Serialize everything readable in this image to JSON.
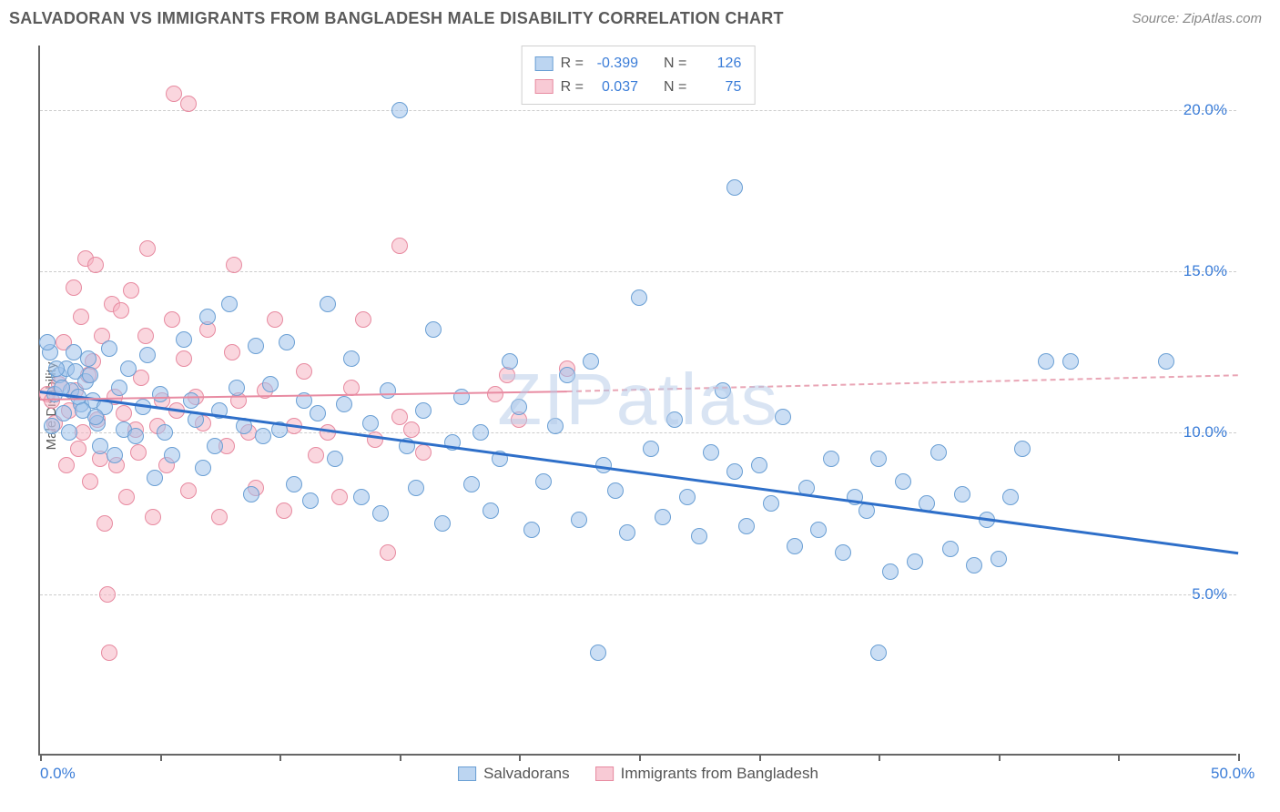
{
  "header": {
    "title": "SALVADORAN VS IMMIGRANTS FROM BANGLADESH MALE DISABILITY CORRELATION CHART",
    "source": "Source: ZipAtlas.com"
  },
  "watermark": "ZIPatlas",
  "ylabel": "Male Disability",
  "chart": {
    "type": "scatter",
    "xlim": [
      0,
      50
    ],
    "ylim": [
      0,
      22
    ],
    "xtick_positions": [
      0,
      5,
      10,
      15,
      20,
      25,
      30,
      35,
      40,
      45,
      50
    ],
    "xtick_labels": {
      "0": "0.0%",
      "50": "50.0%"
    },
    "yticks": [
      5,
      10,
      15,
      20
    ],
    "ytick_labels": [
      "5.0%",
      "10.0%",
      "15.0%",
      "20.0%"
    ],
    "grid_color": "#cccccc",
    "axis_color": "#666666",
    "tick_label_color": "#3b7dd8",
    "background_color": "#ffffff",
    "point_radius": 9,
    "series": {
      "blue": {
        "label": "Salvadorans",
        "fill": "rgba(160,195,235,0.55)",
        "stroke": "#6a9fd4",
        "R": "-0.399",
        "N": "126",
        "trend": {
          "x1": 0,
          "y1": 11.3,
          "x2": 50,
          "y2": 6.3,
          "color": "#2e6fc9",
          "width": 2.5
        },
        "points": [
          [
            0.4,
            12.5
          ],
          [
            0.6,
            11.2
          ],
          [
            0.8,
            11.8
          ],
          [
            1.0,
            10.6
          ],
          [
            1.1,
            12.0
          ],
          [
            1.3,
            11.3
          ],
          [
            1.5,
            11.9
          ],
          [
            1.7,
            10.9
          ],
          [
            1.9,
            11.6
          ],
          [
            2.0,
            12.3
          ],
          [
            2.2,
            11.0
          ],
          [
            2.4,
            10.3
          ],
          [
            2.5,
            9.6
          ],
          [
            2.7,
            10.8
          ],
          [
            2.9,
            12.6
          ],
          [
            3.1,
            9.3
          ],
          [
            3.3,
            11.4
          ],
          [
            3.5,
            10.1
          ],
          [
            3.7,
            12.0
          ],
          [
            4.0,
            9.9
          ],
          [
            4.3,
            10.8
          ],
          [
            4.5,
            12.4
          ],
          [
            4.8,
            8.6
          ],
          [
            5.0,
            11.2
          ],
          [
            5.2,
            10.0
          ],
          [
            5.5,
            9.3
          ],
          [
            6.0,
            12.9
          ],
          [
            6.3,
            11.0
          ],
          [
            6.5,
            10.4
          ],
          [
            6.8,
            8.9
          ],
          [
            7.0,
            13.6
          ],
          [
            7.3,
            9.6
          ],
          [
            7.5,
            10.7
          ],
          [
            7.9,
            14.0
          ],
          [
            8.2,
            11.4
          ],
          [
            8.5,
            10.2
          ],
          [
            8.8,
            8.1
          ],
          [
            9.0,
            12.7
          ],
          [
            9.3,
            9.9
          ],
          [
            9.6,
            11.5
          ],
          [
            10.0,
            10.1
          ],
          [
            10.3,
            12.8
          ],
          [
            10.6,
            8.4
          ],
          [
            11.0,
            11.0
          ],
          [
            11.3,
            7.9
          ],
          [
            11.6,
            10.6
          ],
          [
            12.0,
            14.0
          ],
          [
            12.3,
            9.2
          ],
          [
            12.7,
            10.9
          ],
          [
            13.0,
            12.3
          ],
          [
            13.4,
            8.0
          ],
          [
            13.8,
            10.3
          ],
          [
            14.2,
            7.5
          ],
          [
            14.5,
            11.3
          ],
          [
            15.0,
            20.0
          ],
          [
            15.3,
            9.6
          ],
          [
            15.7,
            8.3
          ],
          [
            16.0,
            10.7
          ],
          [
            16.4,
            13.2
          ],
          [
            16.8,
            7.2
          ],
          [
            17.2,
            9.7
          ],
          [
            17.6,
            11.1
          ],
          [
            18.0,
            8.4
          ],
          [
            18.4,
            10.0
          ],
          [
            18.8,
            7.6
          ],
          [
            19.2,
            9.2
          ],
          [
            19.6,
            12.2
          ],
          [
            20.0,
            10.8
          ],
          [
            20.5,
            7.0
          ],
          [
            21.0,
            8.5
          ],
          [
            21.5,
            10.2
          ],
          [
            22.0,
            11.8
          ],
          [
            22.5,
            7.3
          ],
          [
            23.0,
            12.2
          ],
          [
            23.3,
            3.2
          ],
          [
            23.5,
            9.0
          ],
          [
            24.0,
            8.2
          ],
          [
            24.5,
            6.9
          ],
          [
            25.0,
            14.2
          ],
          [
            25.5,
            9.5
          ],
          [
            26.0,
            7.4
          ],
          [
            26.5,
            10.4
          ],
          [
            27.0,
            8.0
          ],
          [
            27.5,
            6.8
          ],
          [
            28.0,
            9.4
          ],
          [
            28.5,
            11.3
          ],
          [
            29.0,
            8.8
          ],
          [
            29.0,
            17.6
          ],
          [
            29.5,
            7.1
          ],
          [
            30.0,
            9.0
          ],
          [
            30.5,
            7.8
          ],
          [
            31.0,
            10.5
          ],
          [
            31.5,
            6.5
          ],
          [
            32.0,
            8.3
          ],
          [
            32.5,
            7.0
          ],
          [
            33.0,
            9.2
          ],
          [
            33.5,
            6.3
          ],
          [
            34.0,
            8.0
          ],
          [
            34.5,
            7.6
          ],
          [
            35.0,
            9.2
          ],
          [
            35.0,
            3.2
          ],
          [
            35.5,
            5.7
          ],
          [
            36.0,
            8.5
          ],
          [
            36.5,
            6.0
          ],
          [
            37.0,
            7.8
          ],
          [
            37.5,
            9.4
          ],
          [
            38.0,
            6.4
          ],
          [
            38.5,
            8.1
          ],
          [
            39.0,
            5.9
          ],
          [
            39.5,
            7.3
          ],
          [
            40.0,
            6.1
          ],
          [
            40.5,
            8.0
          ],
          [
            41.0,
            9.5
          ],
          [
            42.0,
            12.2
          ],
          [
            43.0,
            12.2
          ],
          [
            47.0,
            12.2
          ],
          [
            0.3,
            12.8
          ],
          [
            0.5,
            10.2
          ],
          [
            0.7,
            12.0
          ],
          [
            0.9,
            11.4
          ],
          [
            1.2,
            10.0
          ],
          [
            1.4,
            12.5
          ],
          [
            1.6,
            11.1
          ],
          [
            1.8,
            10.7
          ],
          [
            2.1,
            11.8
          ],
          [
            2.3,
            10.5
          ]
        ]
      },
      "pink": {
        "label": "Immigrants from Bangladesh",
        "fill": "rgba(245,180,195,0.55)",
        "stroke": "#e78aa0",
        "R": "0.037",
        "N": "75",
        "trend_solid": {
          "x1": 0,
          "y1": 11.05,
          "x2": 22,
          "y2": 11.3,
          "color": "#e88ba2",
          "width": 2
        },
        "trend_dash": {
          "x1": 22,
          "y1": 11.3,
          "x2": 50,
          "y2": 11.8,
          "color": "#e9a5b5",
          "width": 2
        },
        "points": [
          [
            0.3,
            11.2
          ],
          [
            0.5,
            11.0
          ],
          [
            0.6,
            10.3
          ],
          [
            0.8,
            11.5
          ],
          [
            1.0,
            12.8
          ],
          [
            1.1,
            9.0
          ],
          [
            1.2,
            10.7
          ],
          [
            1.4,
            14.5
          ],
          [
            1.5,
            11.3
          ],
          [
            1.6,
            9.5
          ],
          [
            1.7,
            13.6
          ],
          [
            1.8,
            10.0
          ],
          [
            1.9,
            15.4
          ],
          [
            2.0,
            11.8
          ],
          [
            2.1,
            8.5
          ],
          [
            2.2,
            12.2
          ],
          [
            2.3,
            15.2
          ],
          [
            2.4,
            10.4
          ],
          [
            2.5,
            9.2
          ],
          [
            2.6,
            13.0
          ],
          [
            2.7,
            7.2
          ],
          [
            2.8,
            5.0
          ],
          [
            2.9,
            3.2
          ],
          [
            3.0,
            14.0
          ],
          [
            3.1,
            11.1
          ],
          [
            3.2,
            9.0
          ],
          [
            3.4,
            13.8
          ],
          [
            3.5,
            10.6
          ],
          [
            3.6,
            8.0
          ],
          [
            3.8,
            14.4
          ],
          [
            4.0,
            10.1
          ],
          [
            4.1,
            9.4
          ],
          [
            4.2,
            11.7
          ],
          [
            4.4,
            13.0
          ],
          [
            4.5,
            15.7
          ],
          [
            4.7,
            7.4
          ],
          [
            4.9,
            10.2
          ],
          [
            5.1,
            11.0
          ],
          [
            5.3,
            9.0
          ],
          [
            5.5,
            13.5
          ],
          [
            5.6,
            20.5
          ],
          [
            5.7,
            10.7
          ],
          [
            6.0,
            12.3
          ],
          [
            6.2,
            8.2
          ],
          [
            6.2,
            20.2
          ],
          [
            6.5,
            11.1
          ],
          [
            6.8,
            10.3
          ],
          [
            7.0,
            13.2
          ],
          [
            7.5,
            7.4
          ],
          [
            7.8,
            9.6
          ],
          [
            8.0,
            12.5
          ],
          [
            8.1,
            15.2
          ],
          [
            8.3,
            11.0
          ],
          [
            8.7,
            10.0
          ],
          [
            9.0,
            8.3
          ],
          [
            9.4,
            11.3
          ],
          [
            9.8,
            13.5
          ],
          [
            10.2,
            7.6
          ],
          [
            10.6,
            10.2
          ],
          [
            11.0,
            11.9
          ],
          [
            11.5,
            9.3
          ],
          [
            12.0,
            10.0
          ],
          [
            12.5,
            8.0
          ],
          [
            13.0,
            11.4
          ],
          [
            13.5,
            13.5
          ],
          [
            14.0,
            9.8
          ],
          [
            14.5,
            6.3
          ],
          [
            15.0,
            10.5
          ],
          [
            15.0,
            15.8
          ],
          [
            15.5,
            10.1
          ],
          [
            16.0,
            9.4
          ],
          [
            19.0,
            11.2
          ],
          [
            19.5,
            11.8
          ],
          [
            20.0,
            10.4
          ],
          [
            22.0,
            12.0
          ]
        ]
      }
    }
  },
  "top_legend": {
    "rows": [
      {
        "swatch": "blue",
        "R_label": "R =",
        "R": "-0.399",
        "N_label": "N =",
        "N": "126"
      },
      {
        "swatch": "pink",
        "R_label": "R =",
        "R": "0.037",
        "N_label": "N =",
        "N": "75"
      }
    ]
  },
  "bottom_legend": {
    "items": [
      {
        "swatch": "blue",
        "label": "Salvadorans"
      },
      {
        "swatch": "pink",
        "label": "Immigrants from Bangladesh"
      }
    ]
  }
}
